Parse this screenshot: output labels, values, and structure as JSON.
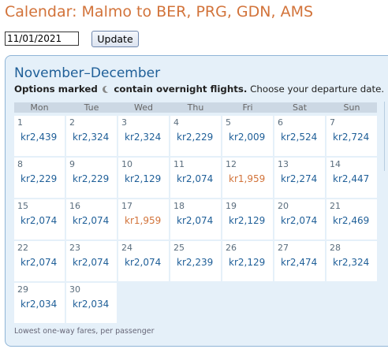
{
  "title": "Calendar: Malmo to BER, PRG, GDN, AMS",
  "date_input": {
    "value": "11/01/2021"
  },
  "update_label": "Update",
  "calendar": {
    "month_title": "November–December",
    "instructions_bold": "Options marked",
    "overnight_icon": "moon-icon",
    "instructions_bold2": "contain overnight flights.",
    "instructions_rest": "Choose your departure date.",
    "weekdays": [
      "Mon",
      "Tue",
      "Wed",
      "Thu",
      "Fri",
      "Sat",
      "Sun"
    ],
    "days": [
      {
        "day": "1",
        "price": "kr2,439"
      },
      {
        "day": "2",
        "price": "kr2,324"
      },
      {
        "day": "3",
        "price": "kr2,324"
      },
      {
        "day": "4",
        "price": "kr2,229"
      },
      {
        "day": "5",
        "price": "kr2,009"
      },
      {
        "day": "6",
        "price": "kr2,524"
      },
      {
        "day": "7",
        "price": "kr2,724"
      },
      {
        "day": "8",
        "price": "kr2,229"
      },
      {
        "day": "9",
        "price": "kr2,229"
      },
      {
        "day": "10",
        "price": "kr2,129"
      },
      {
        "day": "11",
        "price": "kr2,074"
      },
      {
        "day": "12",
        "price": "kr1,959",
        "lowest": true
      },
      {
        "day": "13",
        "price": "kr2,274"
      },
      {
        "day": "14",
        "price": "kr2,447"
      },
      {
        "day": "15",
        "price": "kr2,074"
      },
      {
        "day": "16",
        "price": "kr2,074"
      },
      {
        "day": "17",
        "price": "kr1,959",
        "lowest": true
      },
      {
        "day": "18",
        "price": "kr2,074"
      },
      {
        "day": "19",
        "price": "kr2,129"
      },
      {
        "day": "20",
        "price": "kr2,074"
      },
      {
        "day": "21",
        "price": "kr2,469"
      },
      {
        "day": "22",
        "price": "kr2,074"
      },
      {
        "day": "23",
        "price": "kr2,074"
      },
      {
        "day": "24",
        "price": "kr2,074"
      },
      {
        "day": "25",
        "price": "kr2,239"
      },
      {
        "day": "26",
        "price": "kr2,129"
      },
      {
        "day": "27",
        "price": "kr2,474"
      },
      {
        "day": "28",
        "price": "kr2,324"
      },
      {
        "day": "29",
        "price": "kr2,034"
      },
      {
        "day": "30",
        "price": "kr2,034"
      }
    ],
    "footnote": "Lowest one-way fares, per passenger"
  },
  "colors": {
    "accent": "#d2733a",
    "price": "#1f5f98",
    "panel_bg": "#e5f0f9",
    "panel_border": "#8fb5d7"
  }
}
